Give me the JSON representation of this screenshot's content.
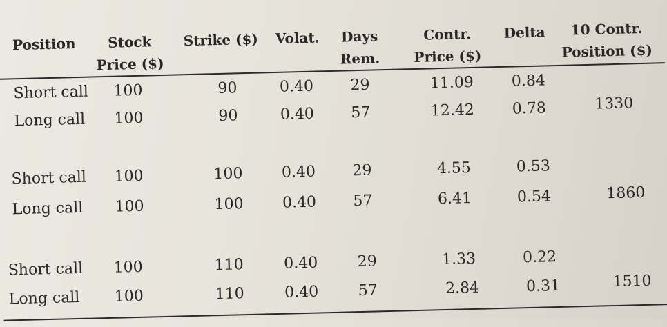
{
  "columns": [
    {
      "key": "position",
      "lines": [
        "",
        "Position"
      ]
    },
    {
      "key": "stock_price",
      "lines": [
        "Stock",
        "Price ($)"
      ]
    },
    {
      "key": "strike",
      "lines": [
        "",
        "Strike ($)"
      ]
    },
    {
      "key": "volat",
      "lines": [
        "",
        "Volat."
      ]
    },
    {
      "key": "days_rem",
      "lines": [
        "Days",
        "Rem."
      ]
    },
    {
      "key": "contr_price",
      "lines": [
        "Contr.",
        "Price ($)"
      ]
    },
    {
      "key": "delta",
      "lines": [
        "",
        "Delta"
      ]
    },
    {
      "key": "ten_contr_position",
      "lines": [
        "10 Contr.",
        "Position ($)"
      ]
    }
  ],
  "groups": [
    {
      "rows": [
        {
          "position": "Short call",
          "stock_price": "100",
          "strike": "90",
          "volat": "0.40",
          "days_rem": "29",
          "contr_price": "11.09",
          "delta": "0.84",
          "ten_contr_position": ""
        },
        {
          "position": "Long call",
          "stock_price": "100",
          "strike": "90",
          "volat": "0.40",
          "days_rem": "57",
          "contr_price": "12.42",
          "delta": "0.78",
          "ten_contr_position": "1330"
        }
      ]
    },
    {
      "rows": [
        {
          "position": "Short call",
          "stock_price": "100",
          "strike": "100",
          "volat": "0.40",
          "days_rem": "29",
          "contr_price": "4.55",
          "delta": "0.53",
          "ten_contr_position": ""
        },
        {
          "position": "Long call",
          "stock_price": "100",
          "strike": "100",
          "volat": "0.40",
          "days_rem": "57",
          "contr_price": "6.41",
          "delta": "0.54",
          "ten_contr_position": "1860"
        }
      ]
    },
    {
      "rows": [
        {
          "position": "Short call",
          "stock_price": "100",
          "strike": "110",
          "volat": "0.40",
          "days_rem": "29",
          "contr_price": "1.33",
          "delta": "0.22",
          "ten_contr_position": ""
        },
        {
          "position": "Long call",
          "stock_price": "100",
          "strike": "110",
          "volat": "0.40",
          "days_rem": "57",
          "contr_price": "2.84",
          "delta": "0.31",
          "ten_contr_position": "1510"
        }
      ]
    }
  ]
}
